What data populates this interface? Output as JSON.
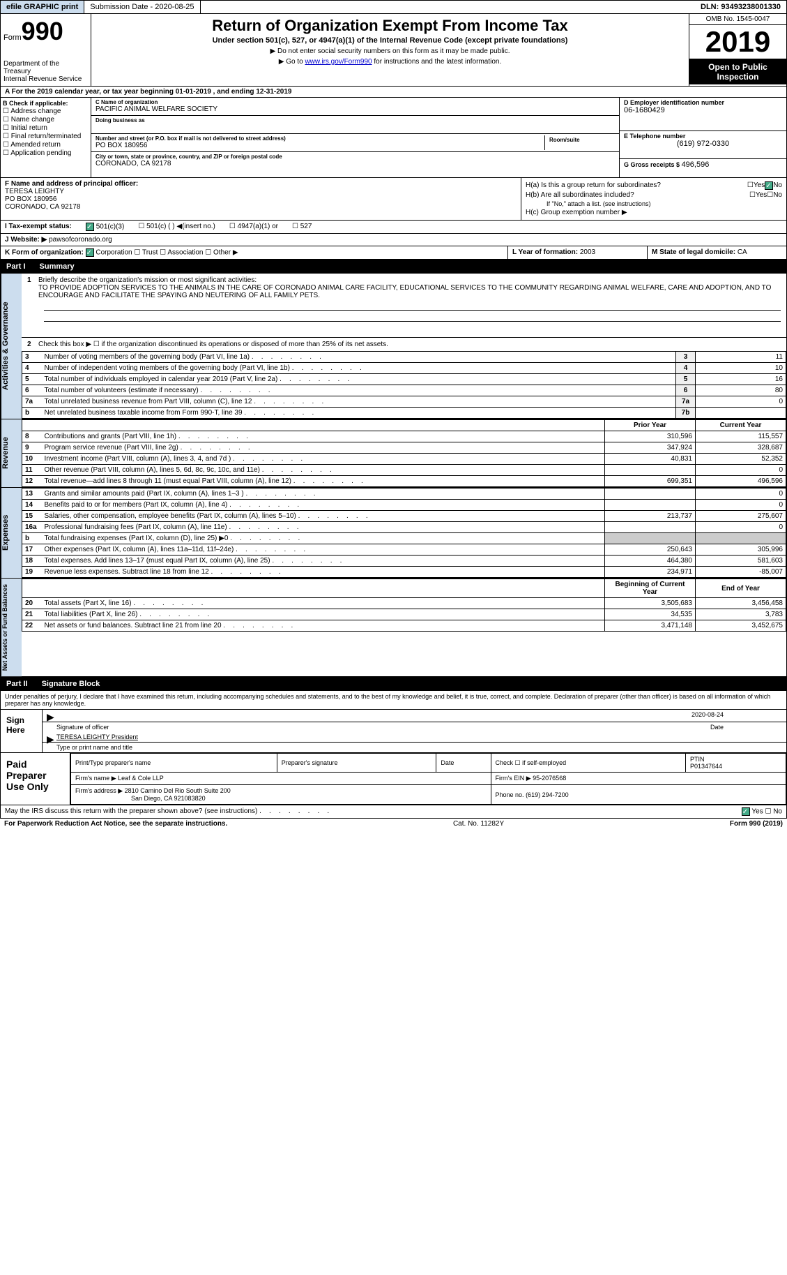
{
  "top": {
    "efile": "efile GRAPHIC print",
    "submission": "Submission Date - 2020-08-25",
    "dln": "DLN: 93493238001330"
  },
  "header": {
    "form": "Form",
    "form_num": "990",
    "dept": "Department of the Treasury\nInternal Revenue Service",
    "title": "Return of Organization Exempt From Income Tax",
    "subtitle": "Under section 501(c), 527, or 4947(a)(1) of the Internal Revenue Code (except private foundations)",
    "note1": "▶ Do not enter social security numbers on this form as it may be made public.",
    "note2_pre": "▶ Go to ",
    "note2_link": "www.irs.gov/Form990",
    "note2_post": " for instructions and the latest information.",
    "omb": "OMB No. 1545-0047",
    "year": "2019",
    "inspection": "Open to Public Inspection"
  },
  "period": "A For the 2019 calendar year, or tax year beginning 01-01-2019    , and ending 12-31-2019",
  "b_checks": {
    "title": "B Check if applicable:",
    "items": [
      "Address change",
      "Name change",
      "Initial return",
      "Final return/terminated",
      "Amended return",
      "Application pending"
    ]
  },
  "org": {
    "c_label": "C Name of organization",
    "name": "PACIFIC ANIMAL WELFARE SOCIETY",
    "dba_label": "Doing business as",
    "addr_label": "Number and street (or P.O. box if mail is not delivered to street address)",
    "addr": "PO BOX 180956",
    "room_label": "Room/suite",
    "city_label": "City or town, state or province, country, and ZIP or foreign postal code",
    "city": "CORONADO, CA   92178"
  },
  "d": {
    "label": "D Employer identification number",
    "value": "06-1680429"
  },
  "e": {
    "label": "E Telephone number",
    "value": "(619) 972-0330"
  },
  "g": {
    "label": "G Gross receipts $",
    "value": "496,596"
  },
  "f": {
    "label": "F   Name and address of principal officer:",
    "name": "TERESA LEIGHTY",
    "addr": "PO BOX 180956",
    "city": "CORONADO, CA   92178"
  },
  "h": {
    "a": "H(a)  Is this a group return for subordinates?",
    "b": "H(b)  Are all subordinates included?",
    "note": "If \"No,\" attach a list. (see instructions)",
    "c": "H(c)  Group exemption number ▶",
    "yes": "Yes",
    "no": "No"
  },
  "i": {
    "label": "I   Tax-exempt status:",
    "opts": [
      "501(c)(3)",
      "501(c) (  ) ◀(insert no.)",
      "4947(a)(1) or",
      "527"
    ]
  },
  "j": {
    "label": "J   Website: ▶",
    "value": "pawsofcoronado.org"
  },
  "k": {
    "label": "K Form of organization:",
    "opts": [
      "Corporation",
      "Trust",
      "Association",
      "Other ▶"
    ]
  },
  "l": {
    "label": "L Year of formation:",
    "value": "2003"
  },
  "m": {
    "label": "M State of legal domicile:",
    "value": "CA"
  },
  "part1": {
    "num": "Part I",
    "title": "Summary"
  },
  "mission": {
    "num": "1",
    "label": "Briefly describe the organization's mission or most significant activities:",
    "text": "TO PROVIDE ADOPTION SERVICES TO THE ANIMALS IN THE CARE OF CORONADO ANIMAL CARE FACILITY, EDUCATIONAL SERVICES TO THE COMMUNITY REGARDING ANIMAL WELFARE, CARE AND ADOPTION, AND TO ENCOURAGE AND FACILITATE THE SPAYING AND NEUTERING OF ALL FAMILY PETS."
  },
  "line2": "Check this box ▶ ☐ if the organization discontinued its operations or disposed of more than 25% of its net assets.",
  "side_labels": {
    "gov": "Activities & Governance",
    "rev": "Revenue",
    "exp": "Expenses",
    "bal": "Net Assets or Fund Balances"
  },
  "gov_rows": [
    {
      "n": "3",
      "d": "Number of voting members of the governing body (Part VI, line 1a)",
      "l": "3",
      "v": "11"
    },
    {
      "n": "4",
      "d": "Number of independent voting members of the governing body (Part VI, line 1b)",
      "l": "4",
      "v": "10"
    },
    {
      "n": "5",
      "d": "Total number of individuals employed in calendar year 2019 (Part V, line 2a)",
      "l": "5",
      "v": "16"
    },
    {
      "n": "6",
      "d": "Total number of volunteers (estimate if necessary)",
      "l": "6",
      "v": "80"
    },
    {
      "n": "7a",
      "d": "Total unrelated business revenue from Part VIII, column (C), line 12",
      "l": "7a",
      "v": "0"
    },
    {
      "n": "b",
      "d": "Net unrelated business taxable income from Form 990-T, line 39",
      "l": "7b",
      "v": ""
    }
  ],
  "rev_hdr": {
    "py": "Prior Year",
    "cy": "Current Year"
  },
  "rev_rows": [
    {
      "n": "8",
      "d": "Contributions and grants (Part VIII, line 1h)",
      "py": "310,596",
      "cy": "115,557"
    },
    {
      "n": "9",
      "d": "Program service revenue (Part VIII, line 2g)",
      "py": "347,924",
      "cy": "328,687"
    },
    {
      "n": "10",
      "d": "Investment income (Part VIII, column (A), lines 3, 4, and 7d )",
      "py": "40,831",
      "cy": "52,352"
    },
    {
      "n": "11",
      "d": "Other revenue (Part VIII, column (A), lines 5, 6d, 8c, 9c, 10c, and 11e)",
      "py": "",
      "cy": "0"
    },
    {
      "n": "12",
      "d": "Total revenue—add lines 8 through 11 (must equal Part VIII, column (A), line 12)",
      "py": "699,351",
      "cy": "496,596"
    }
  ],
  "exp_rows": [
    {
      "n": "13",
      "d": "Grants and similar amounts paid (Part IX, column (A), lines 1–3 )",
      "py": "",
      "cy": "0"
    },
    {
      "n": "14",
      "d": "Benefits paid to or for members (Part IX, column (A), line 4)",
      "py": "",
      "cy": "0"
    },
    {
      "n": "15",
      "d": "Salaries, other compensation, employee benefits (Part IX, column (A), lines 5–10)",
      "py": "213,737",
      "cy": "275,607"
    },
    {
      "n": "16a",
      "d": "Professional fundraising fees (Part IX, column (A), line 11e)",
      "py": "",
      "cy": "0"
    },
    {
      "n": "b",
      "d": "Total fundraising expenses (Part IX, column (D), line 25) ▶0",
      "py": "shaded",
      "cy": "shaded"
    },
    {
      "n": "17",
      "d": "Other expenses (Part IX, column (A), lines 11a–11d, 11f–24e)",
      "py": "250,643",
      "cy": "305,996"
    },
    {
      "n": "18",
      "d": "Total expenses. Add lines 13–17 (must equal Part IX, column (A), line 25)",
      "py": "464,380",
      "cy": "581,603"
    },
    {
      "n": "19",
      "d": "Revenue less expenses. Subtract line 18 from line 12",
      "py": "234,971",
      "cy": "-85,007"
    }
  ],
  "bal_hdr": {
    "py": "Beginning of Current Year",
    "cy": "End of Year"
  },
  "bal_rows": [
    {
      "n": "20",
      "d": "Total assets (Part X, line 16)",
      "py": "3,505,683",
      "cy": "3,456,458"
    },
    {
      "n": "21",
      "d": "Total liabilities (Part X, line 26)",
      "py": "34,535",
      "cy": "3,783"
    },
    {
      "n": "22",
      "d": "Net assets or fund balances. Subtract line 21 from line 20",
      "py": "3,471,148",
      "cy": "3,452,675"
    }
  ],
  "part2": {
    "num": "Part II",
    "title": "Signature Block"
  },
  "sig": {
    "intro": "Under penalties of perjury, I declare that I have examined this return, including accompanying schedules and statements, and to the best of my knowledge and belief, it is true, correct, and complete. Declaration of preparer (other than officer) is based on all information of which preparer has any knowledge.",
    "here": "Sign Here",
    "sig_line": "Signature of officer",
    "date_lbl": "Date",
    "date": "2020-08-24",
    "name": "TERESA LEIGHTY  President",
    "type_lbl": "Type or print name and title"
  },
  "prep": {
    "title": "Paid Preparer Use Only",
    "h1": "Print/Type preparer's name",
    "h2": "Preparer's signature",
    "h3": "Date",
    "check_lbl": "Check ☐ if self-employed",
    "ptin_lbl": "PTIN",
    "ptin": "P01347644",
    "firm_lbl": "Firm's name    ▶",
    "firm": "Leaf & Cole LLP",
    "ein_lbl": "Firm's EIN ▶",
    "ein": "95-2076568",
    "addr_lbl": "Firm's address ▶",
    "addr": "2810 Camino Del Rio South Suite 200",
    "addr2": "San Diego, CA   921083820",
    "phone_lbl": "Phone no.",
    "phone": "(619) 294-7200"
  },
  "discuss": "May the IRS discuss this return with the preparer shown above? (see instructions)",
  "footer": {
    "left": "For Paperwork Reduction Act Notice, see the separate instructions.",
    "mid": "Cat. No. 11282Y",
    "right": "Form 990 (2019)"
  }
}
